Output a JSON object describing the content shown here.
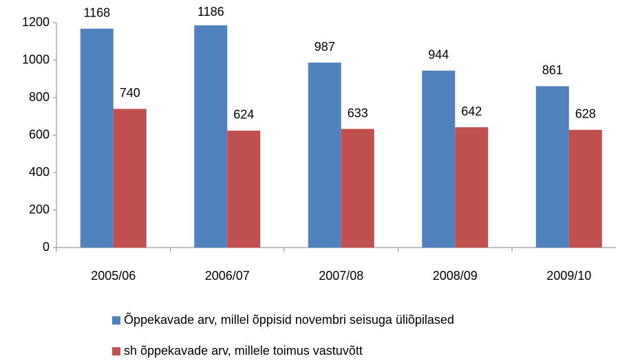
{
  "chart_data": {
    "type": "bar",
    "categories": [
      "2005/06",
      "2006/07",
      "2007/08",
      "2008/09",
      "2009/10"
    ],
    "series": [
      {
        "name": "Õppekavade arv, millel õppisid novembri seisuga üliõpilased",
        "color": "#4f81bd",
        "values": [
          1168,
          1186,
          987,
          944,
          861
        ]
      },
      {
        "name": "sh õppekavade arv, millele toimus vastuvõtt",
        "color": "#c0504d",
        "values": [
          740,
          624,
          633,
          642,
          628
        ]
      }
    ],
    "ylim": [
      0,
      1200
    ],
    "yticks": [
      0,
      200,
      400,
      600,
      800,
      1000,
      1200
    ],
    "legend": "bottom"
  }
}
